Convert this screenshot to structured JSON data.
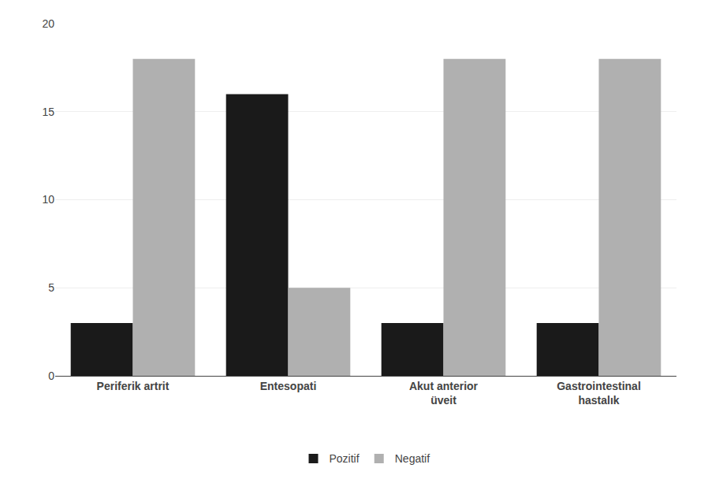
{
  "chart_data": {
    "type": "bar",
    "categories": [
      "Periferik artrit",
      "Entesopati",
      "Akut anterior\nüveit",
      "Gastrointestinal\nhastalık"
    ],
    "series": [
      {
        "name": "Pozitif",
        "color": "#1a1a1a",
        "values": [
          3,
          16,
          3,
          3
        ]
      },
      {
        "name": "Negatif",
        "color": "#b0b0b0",
        "values": [
          18,
          5,
          18,
          18
        ]
      }
    ],
    "ylim": [
      0,
      20
    ],
    "yticks": [
      0,
      5,
      10,
      15,
      20
    ],
    "grid": true,
    "legend": "bottom"
  }
}
